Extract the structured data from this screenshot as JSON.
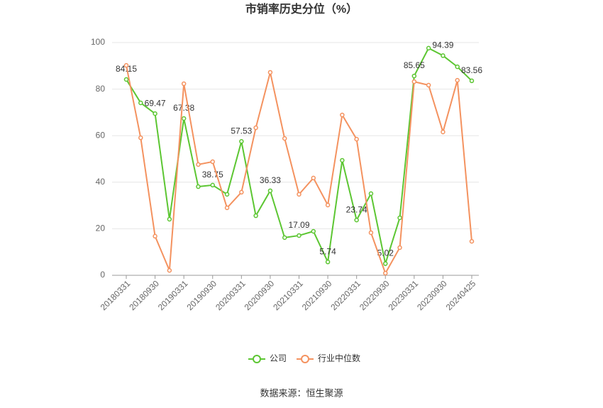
{
  "chart_data": {
    "type": "line",
    "title": "市销率历史分位（%）",
    "categories": [
      "20180331",
      null,
      "20180930",
      null,
      "20190331",
      null,
      "20190930",
      null,
      "20200331",
      null,
      "20200930",
      null,
      "20210331",
      null,
      "20210930",
      null,
      "20220331",
      null,
      "20220930",
      null,
      "20230331",
      null,
      "20230930",
      null,
      "20240425"
    ],
    "series": [
      {
        "name": "公司",
        "color": "#5cc632",
        "values": [
          84.15,
          74.1,
          69.47,
          24.1,
          67.38,
          38.1,
          38.75,
          34.8,
          57.53,
          25.6,
          36.33,
          16.2,
          17.09,
          18.9,
          5.74,
          49.4,
          23.74,
          35.1,
          5.02,
          24.7,
          85.65,
          97.6,
          94.39,
          89.6,
          83.56
        ]
      },
      {
        "name": "行业中位数",
        "color": "#f4925f",
        "values": [
          90.2,
          59.1,
          16.8,
          2.1,
          82.3,
          47.6,
          48.8,
          29.0,
          35.7,
          63.4,
          87.2,
          58.8,
          34.8,
          41.8,
          30.2,
          68.9,
          58.5,
          18.3,
          0.9,
          11.9,
          83.2,
          81.7,
          61.6,
          83.8,
          14.6
        ]
      }
    ],
    "ylim": [
      0,
      100
    ],
    "yticks": [
      0,
      20,
      40,
      60,
      80,
      100
    ],
    "grid": true,
    "legend": "bottom",
    "source": "数据来源：恒生聚源"
  }
}
